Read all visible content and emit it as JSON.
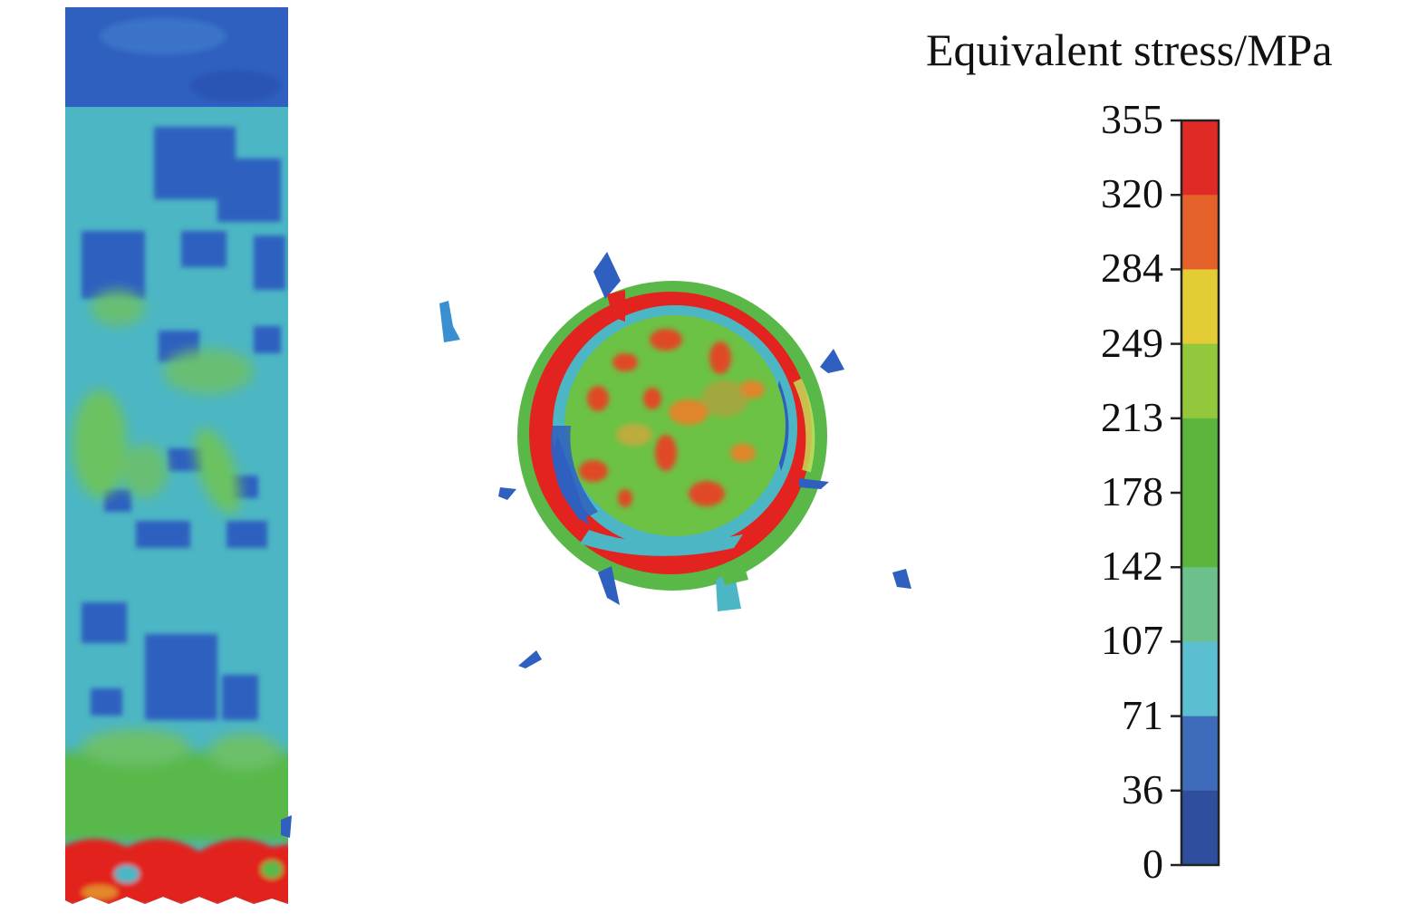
{
  "legend": {
    "title": "Equivalent stress/MPa",
    "ticks": [
      "355",
      "320",
      "284",
      "249",
      "213",
      "178",
      "142",
      "107",
      "71",
      "36",
      "0"
    ],
    "bands": [
      "#e02a26",
      "#e4612a",
      "#e3cc34",
      "#93c83d",
      "#5bb43c",
      "#5bb43c",
      "#6cc08c",
      "#5bbfd1",
      "#3f6cba",
      "#2f4e9e"
    ]
  },
  "colors": {
    "low": "#2f5ec0",
    "cyan": "#4fb8c8",
    "green": "#5bb84a",
    "lime": "#8fc94a",
    "orange": "#e0852a",
    "red": "#e2231f"
  }
}
